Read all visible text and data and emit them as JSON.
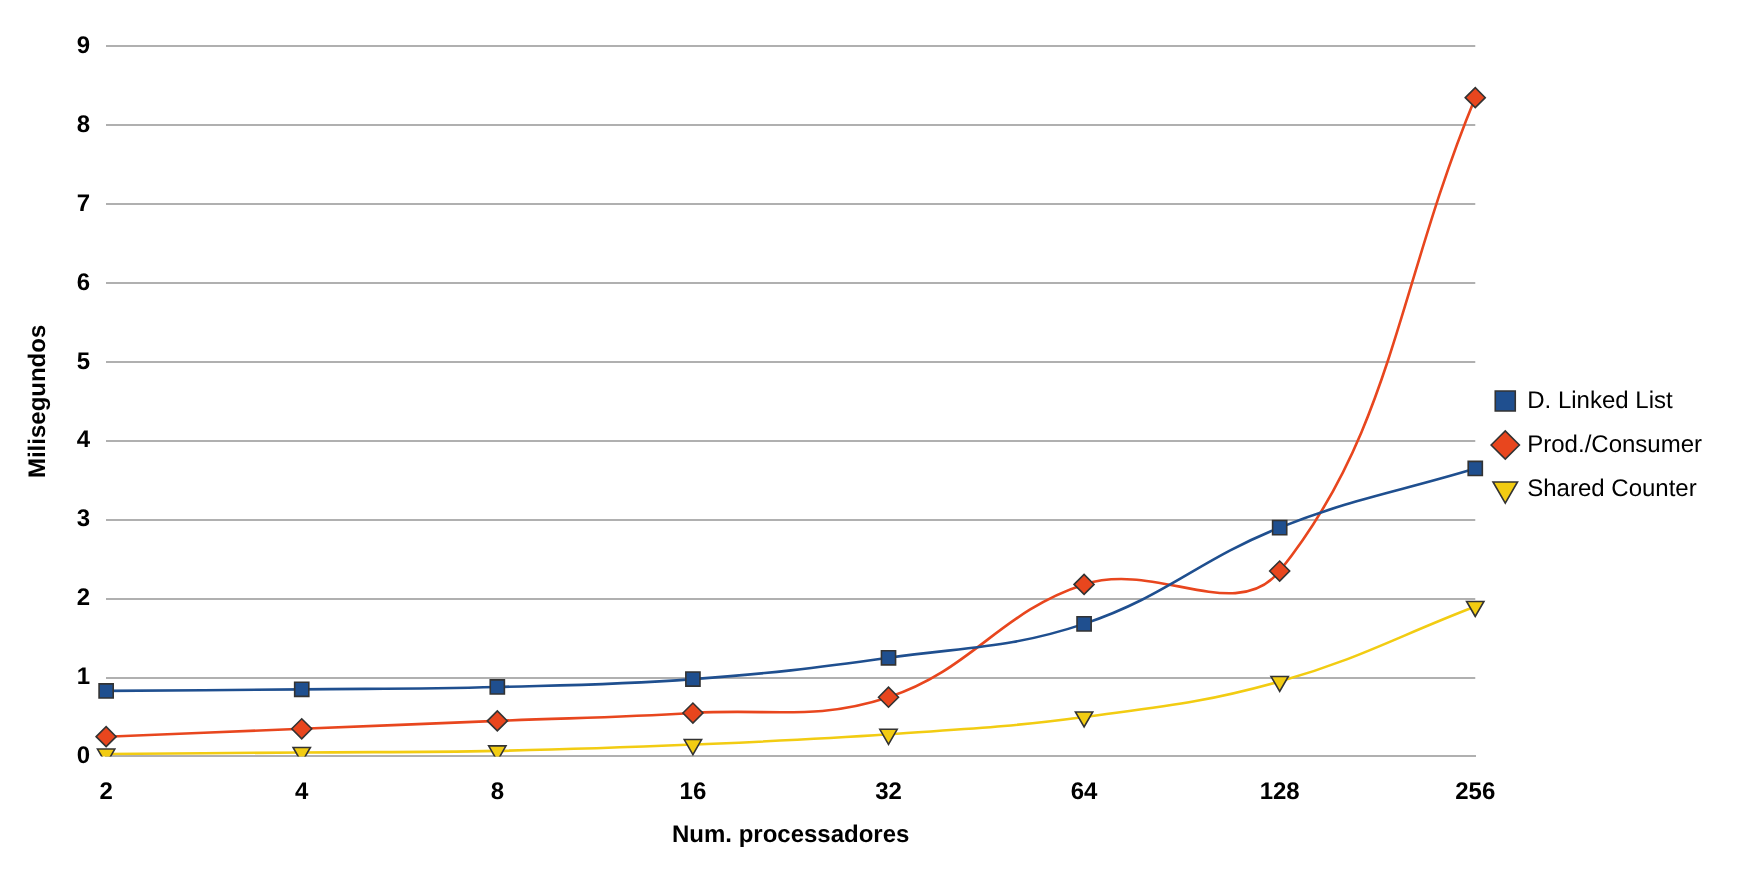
{
  "chart_data": {
    "type": "line",
    "xlabel": "Num. processadores",
    "ylabel": "Milisegundos",
    "categories": [
      "2",
      "4",
      "8",
      "16",
      "32",
      "64",
      "128",
      "256"
    ],
    "series": [
      {
        "name": "D. Linked List",
        "color": "#1f4f8f",
        "marker": "square",
        "values": [
          0.83,
          0.85,
          0.88,
          0.98,
          1.25,
          1.68,
          2.9,
          3.65
        ]
      },
      {
        "name": "Prod./Consumer",
        "color": "#e8461e",
        "marker": "diamond",
        "values": [
          0.25,
          0.35,
          0.45,
          0.55,
          0.75,
          2.18,
          2.35,
          8.35
        ]
      },
      {
        "name": "Shared Counter",
        "color": "#f2cc12",
        "marker": "triangle",
        "values": [
          0.03,
          0.05,
          0.07,
          0.15,
          0.28,
          0.5,
          0.95,
          1.9
        ]
      }
    ],
    "ylim": [
      0,
      9
    ],
    "yticks": [
      0,
      1,
      2,
      3,
      4,
      5,
      6,
      7,
      8,
      9
    ],
    "grid": "y",
    "legend": "right"
  }
}
